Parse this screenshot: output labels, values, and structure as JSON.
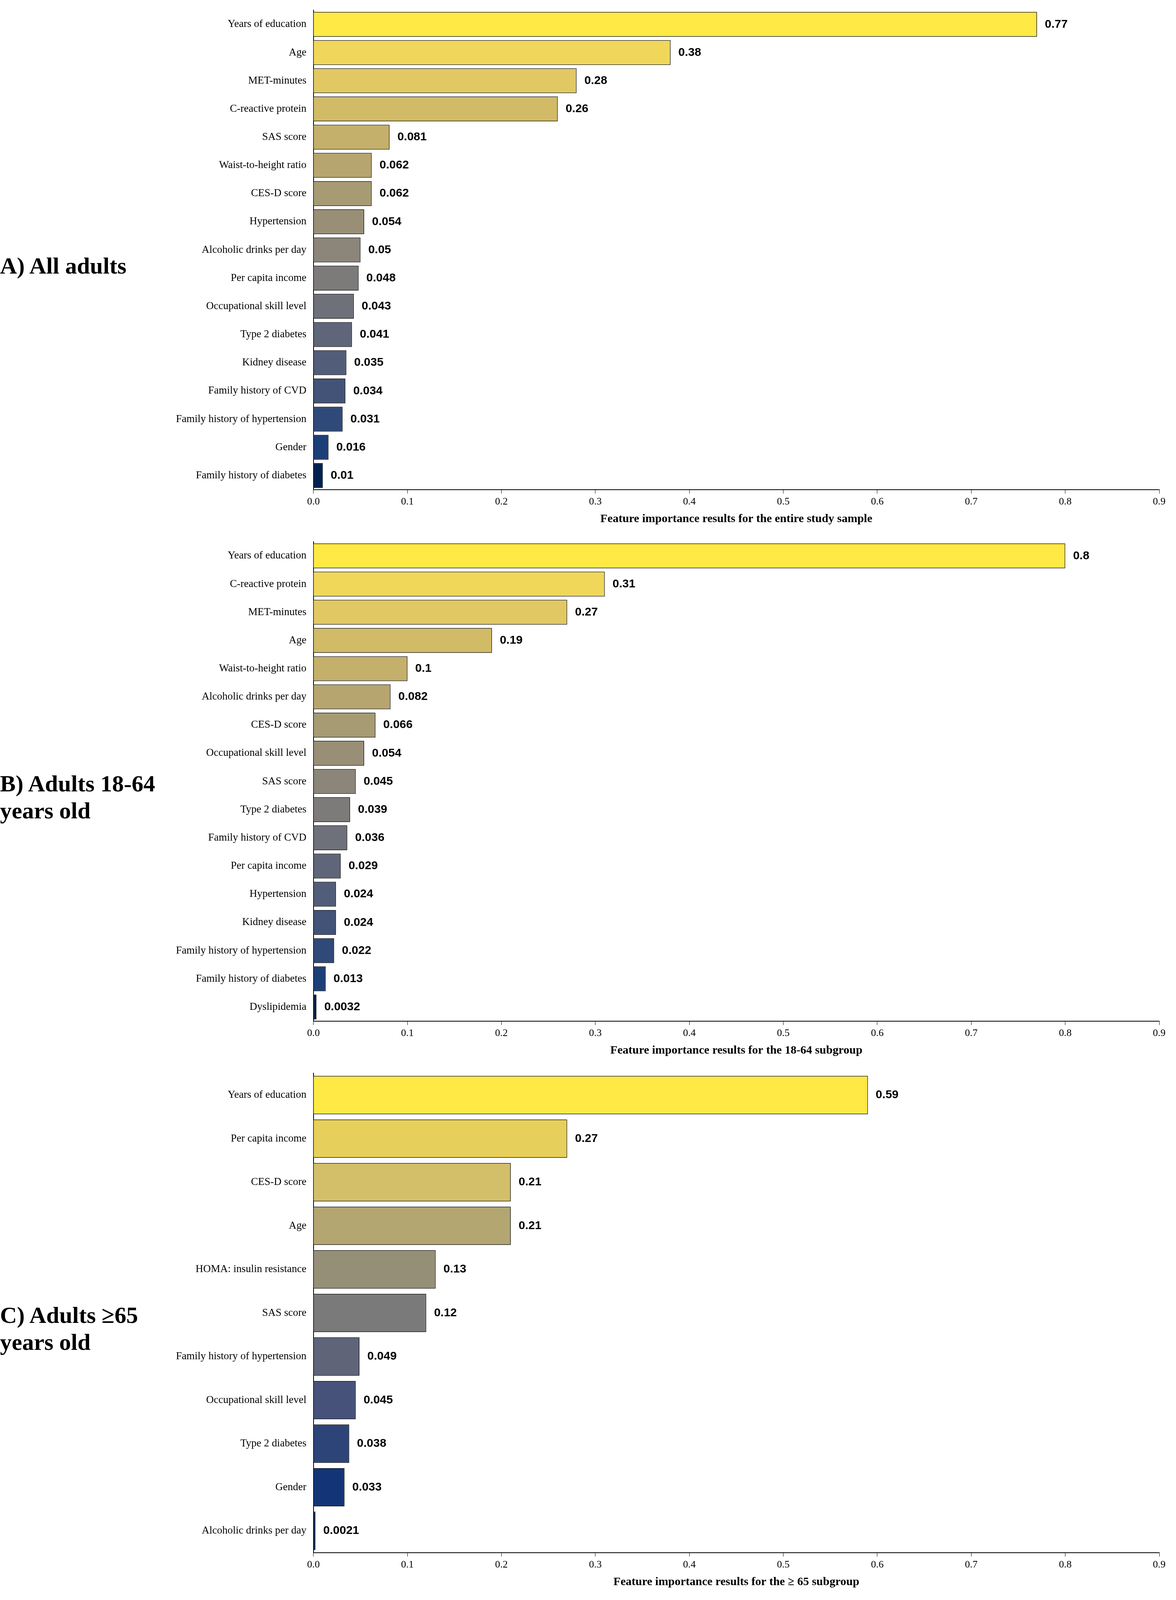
{
  "chart_data": [
    {
      "type": "bar",
      "orientation": "horizontal",
      "title": "A) All adults",
      "x_label": "Feature importance results for the entire study sample",
      "categories": [
        "Years of education",
        "Age",
        "MET-minutes",
        "C-reactive protein",
        "SAS score",
        "Waist-to-height ratio",
        "CES-D score",
        "Hypertension",
        "Alcoholic drinks per day",
        "Per capita income",
        "Occupational skill level",
        "Type 2 diabetes",
        "Kidney disease",
        "Family history of CVD",
        "Family history of hypertension",
        "Gender",
        "Family history of diabetes"
      ],
      "values": [
        0.77,
        0.38,
        0.28,
        0.26,
        0.081,
        0.062,
        0.062,
        0.054,
        0.05,
        0.048,
        0.043,
        0.041,
        0.035,
        0.034,
        0.031,
        0.016,
        0.01
      ],
      "colors": [
        "#fee945",
        "#f0d75a",
        "#e1c862",
        "#d2bb66",
        "#c4b06b",
        "#b7a56f",
        "#a79b74",
        "#998f77",
        "#8b857a",
        "#7d7b7a",
        "#6e707a",
        "#606679",
        "#525d79",
        "#435377",
        "#2f4a78",
        "#1d3f77",
        "#00224e"
      ],
      "xlim": [
        0,
        0.9
      ],
      "xticks": [
        {
          "value": 0,
          "label": "0.0"
        },
        0.1,
        0.2,
        0.3,
        0.4,
        0.5,
        0.6,
        0.7,
        0.8,
        0.9
      ],
      "data_labels": true,
      "grid": false
    },
    {
      "type": "bar",
      "orientation": "horizontal",
      "title": "B) Adults 18-64 years old",
      "x_label": "Feature importance results for the 18-64 subgroup",
      "categories": [
        "Years of education",
        "C-reactive protein",
        "MET-minutes",
        "Age",
        "Waist-to-height ratio",
        "Alcoholic drinks per day",
        "CES-D score",
        "Occupational skill level",
        "SAS score",
        "Type 2 diabetes",
        "Family history of CVD",
        "Per capita income",
        "Hypertension",
        "Kidney disease",
        "Family history of hypertension",
        "Family history of diabetes",
        "Dyslipidemia"
      ],
      "values": [
        0.8,
        0.31,
        0.27,
        0.19,
        0.1,
        0.082,
        0.066,
        0.054,
        0.045,
        0.039,
        0.036,
        0.029,
        0.024,
        0.024,
        0.022,
        0.013,
        0.0032
      ],
      "colors": [
        "#fee945",
        "#f0d75a",
        "#e1c862",
        "#d2bb66",
        "#c4b06b",
        "#b7a56f",
        "#a79b74",
        "#998f77",
        "#8b857a",
        "#7d7b7a",
        "#6e707a",
        "#606679",
        "#525d79",
        "#435377",
        "#2f4a78",
        "#1d3f77",
        "#00224e"
      ],
      "xlim": [
        0,
        0.9
      ],
      "xticks": [
        {
          "value": 0,
          "label": "0.0"
        },
        0.1,
        0.2,
        0.3,
        0.4,
        0.5,
        0.6,
        0.7,
        0.8,
        0.9
      ],
      "data_labels": true,
      "grid": false
    },
    {
      "type": "bar",
      "orientation": "horizontal",
      "title": "C) Adults ≥65 years old",
      "x_label": "Feature importance results for the ≥ 65 subgroup",
      "categories": [
        "Years of education",
        "Per capita income",
        "CES-D score",
        "Age",
        "HOMA: insulin resistance",
        "SAS score",
        "Family history of hypertension",
        "Occupational skill level",
        "Type 2 diabetes",
        "Gender",
        "Alcoholic drinks per day"
      ],
      "values": [
        0.59,
        0.27,
        0.21,
        0.21,
        0.13,
        0.12,
        0.049,
        0.045,
        0.038,
        0.033,
        0.0021
      ],
      "colors": [
        "#fee945",
        "#e6cf5a",
        "#d3bf69",
        "#b3a671",
        "#968f77",
        "#7a7a7a",
        "#5f6479",
        "#46527a",
        "#2d4478",
        "#133577",
        "#00224e"
      ],
      "xlim": [
        0,
        0.9
      ],
      "xticks": [
        {
          "value": 0,
          "label": "0.0"
        },
        0.1,
        0.2,
        0.3,
        0.4,
        0.5,
        0.6,
        0.7,
        0.8,
        0.9
      ],
      "data_labels": true,
      "grid": false
    }
  ]
}
